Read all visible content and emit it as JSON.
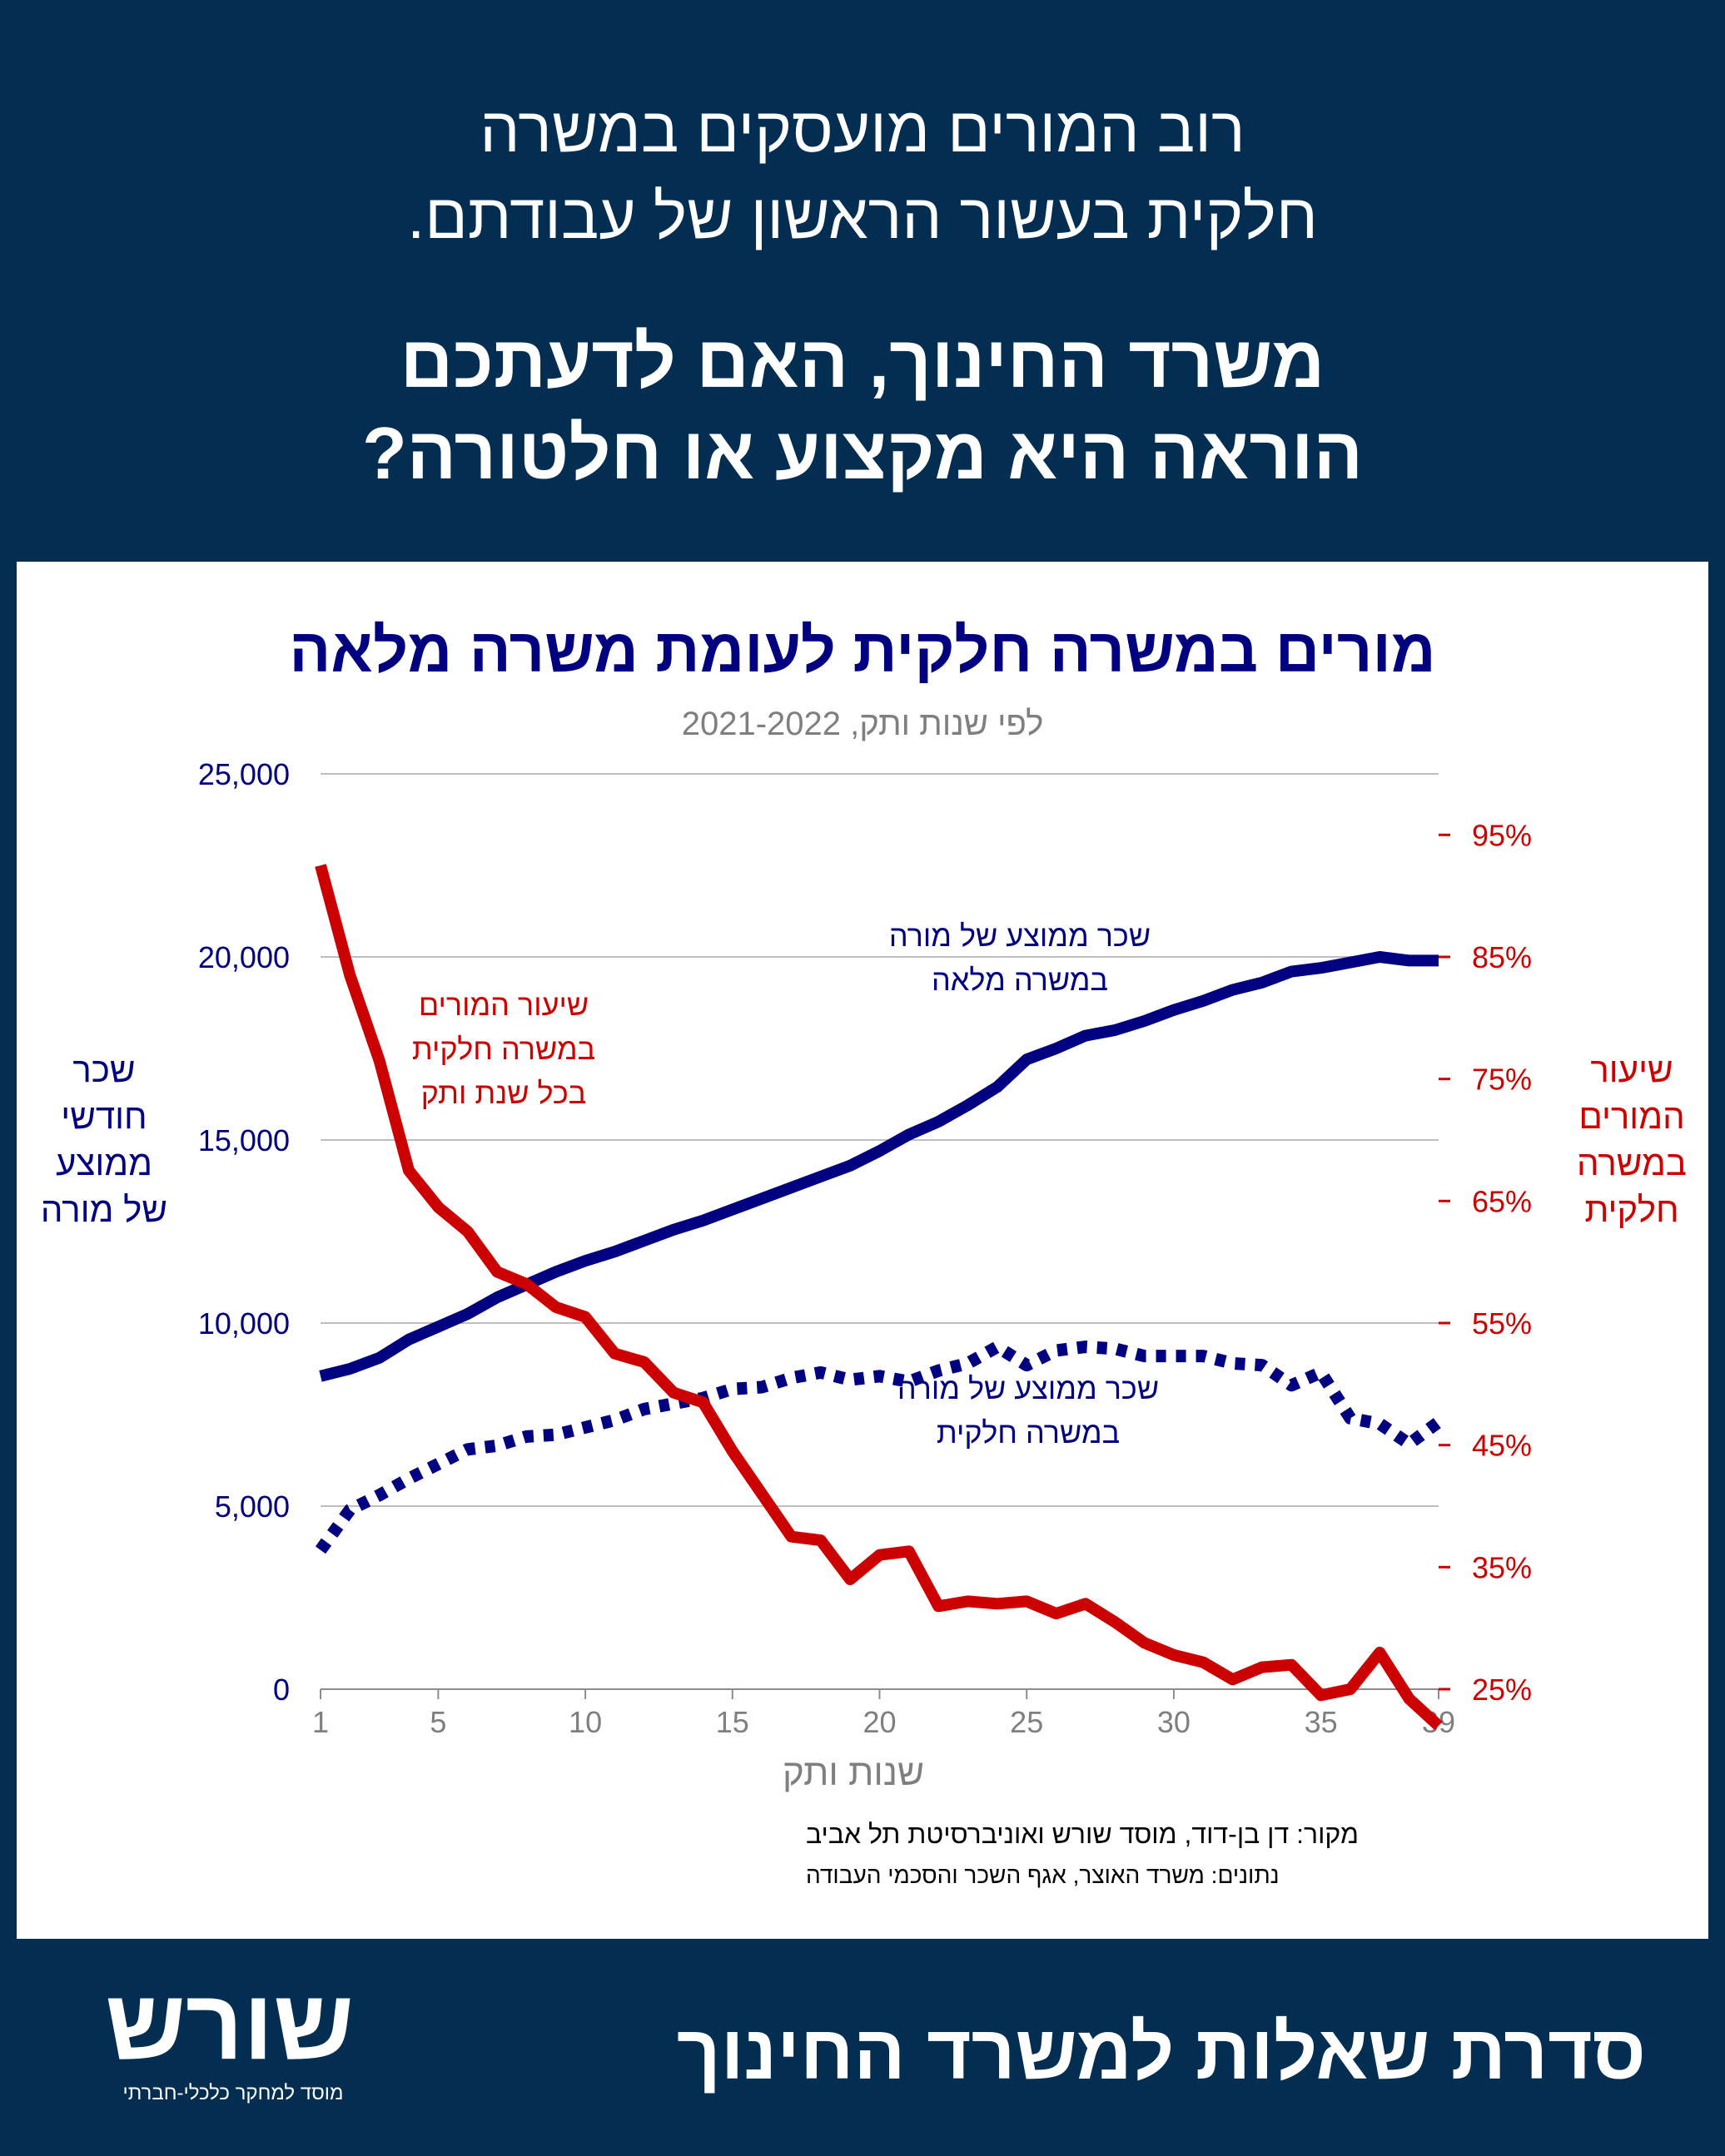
{
  "header": {
    "headline_line1": "רוב המורים מועסקים במשרה",
    "headline_line2": "חלקית בעשור הראשון של עבודתם.",
    "question_line1": "משרד החינוך, האם לדעתכם",
    "question_line2": "הוראה היא מקצוע או חלטורה?"
  },
  "footer": {
    "series_title": "סדרת שאלות למשרד החינוך",
    "logo_word": "שורש",
    "logo_tagline": "מוסד למחקר כלכלי-חברתי"
  },
  "colors": {
    "background": "#032e52",
    "navy": "#000080",
    "red": "#cc0000",
    "gray": "#7f7f7f"
  },
  "chart_data": {
    "type": "line",
    "title": "מורים במשרה חלקית לעומת משרה מלאה",
    "subtitle": "לפי שנות ותק, 2021-2022",
    "xlabel": "שנות ותק",
    "ylabel_left": [
      "שכר",
      "חודשי",
      "ממוצע",
      "של מורה"
    ],
    "ylabel_right": [
      "שיעור",
      "המורים",
      "במשרה",
      "חלקית"
    ],
    "x_ticks": [
      1,
      5,
      10,
      15,
      20,
      25,
      30,
      35,
      39
    ],
    "xlim": [
      1,
      39
    ],
    "y_left": {
      "lim": [
        0,
        25000
      ],
      "ticks": [
        "0",
        "5,000",
        "10,000",
        "15,000",
        "20,000",
        "25,000"
      ],
      "tick_values": [
        0,
        5000,
        10000,
        15000,
        20000,
        25000
      ]
    },
    "y_right": {
      "lim": [
        25,
        100
      ],
      "ticks": [
        "25%",
        "35%",
        "45%",
        "55%",
        "65%",
        "75%",
        "85%",
        "95%"
      ],
      "tick_values": [
        25,
        35,
        45,
        55,
        65,
        75,
        85,
        95
      ]
    },
    "grid": "horizontal",
    "x": [
      1,
      2,
      3,
      4,
      5,
      6,
      7,
      8,
      9,
      10,
      11,
      12,
      13,
      14,
      15,
      16,
      17,
      18,
      19,
      20,
      21,
      22,
      23,
      24,
      25,
      26,
      27,
      28,
      29,
      30,
      31,
      32,
      33,
      34,
      35,
      36,
      37,
      38,
      39
    ],
    "series": [
      {
        "name": "שכר ממוצע של מורה במשרה מלאה",
        "label_lines": [
          "שכר ממוצע של מורה",
          "במשרה מלאה"
        ],
        "axis": "left",
        "style": "solid",
        "color": "#000080",
        "values": [
          8550,
          8750,
          9050,
          9550,
          9900,
          10250,
          10700,
          11050,
          11400,
          11700,
          11950,
          12250,
          12550,
          12800,
          13100,
          13400,
          13700,
          14000,
          14300,
          14700,
          15150,
          15500,
          15950,
          16450,
          17200,
          17500,
          17850,
          18000,
          18250,
          18550,
          18800,
          19100,
          19300,
          19600,
          19700,
          19850,
          20000,
          19900,
          19900
        ]
      },
      {
        "name": "שכר ממוצע של מורה במשרה חלקית",
        "label_lines": [
          "שכר ממוצע של מורה",
          "במשרה חלקית"
        ],
        "axis": "left",
        "style": "dotted",
        "color": "#000080",
        "values": [
          3800,
          4900,
          5300,
          5750,
          6150,
          6550,
          6650,
          6900,
          6950,
          7150,
          7350,
          7650,
          7800,
          7950,
          8200,
          8250,
          8500,
          8650,
          8450,
          8550,
          8400,
          8700,
          8900,
          9350,
          8850,
          9250,
          9350,
          9300,
          9100,
          9100,
          9100,
          8900,
          8850,
          8300,
          8650,
          7400,
          7250,
          6700,
          7300
        ]
      },
      {
        "name": "שיעור המורים במשרה חלקית בכל שנת ותק",
        "label_lines": [
          "שיעור המורים",
          "במשרה חלקית",
          "בכל שנת ותק"
        ],
        "axis": "right",
        "style": "solid",
        "color": "#cc0000",
        "values": [
          92.5,
          83.5,
          76.5,
          67.5,
          64.5,
          62.5,
          59.2,
          58.2,
          56.3,
          55.5,
          52.5,
          51.8,
          49.3,
          48.5,
          44.5,
          41.0,
          37.5,
          37.2,
          34.0,
          36.0,
          36.3,
          31.8,
          32.2,
          32.0,
          32.2,
          31.2,
          32.0,
          30.5,
          28.8,
          27.8,
          27.2,
          25.8,
          26.8,
          27.0,
          24.5,
          25.0,
          28.0,
          24.2,
          22.0
        ]
      }
    ],
    "source_line": "מקור:  דן בן-דוד, מוסד שורש ואוניברסיטת תל אביב",
    "data_line": "נתונים: משרד האוצר, אגף השכר והסכמי העבודה"
  }
}
